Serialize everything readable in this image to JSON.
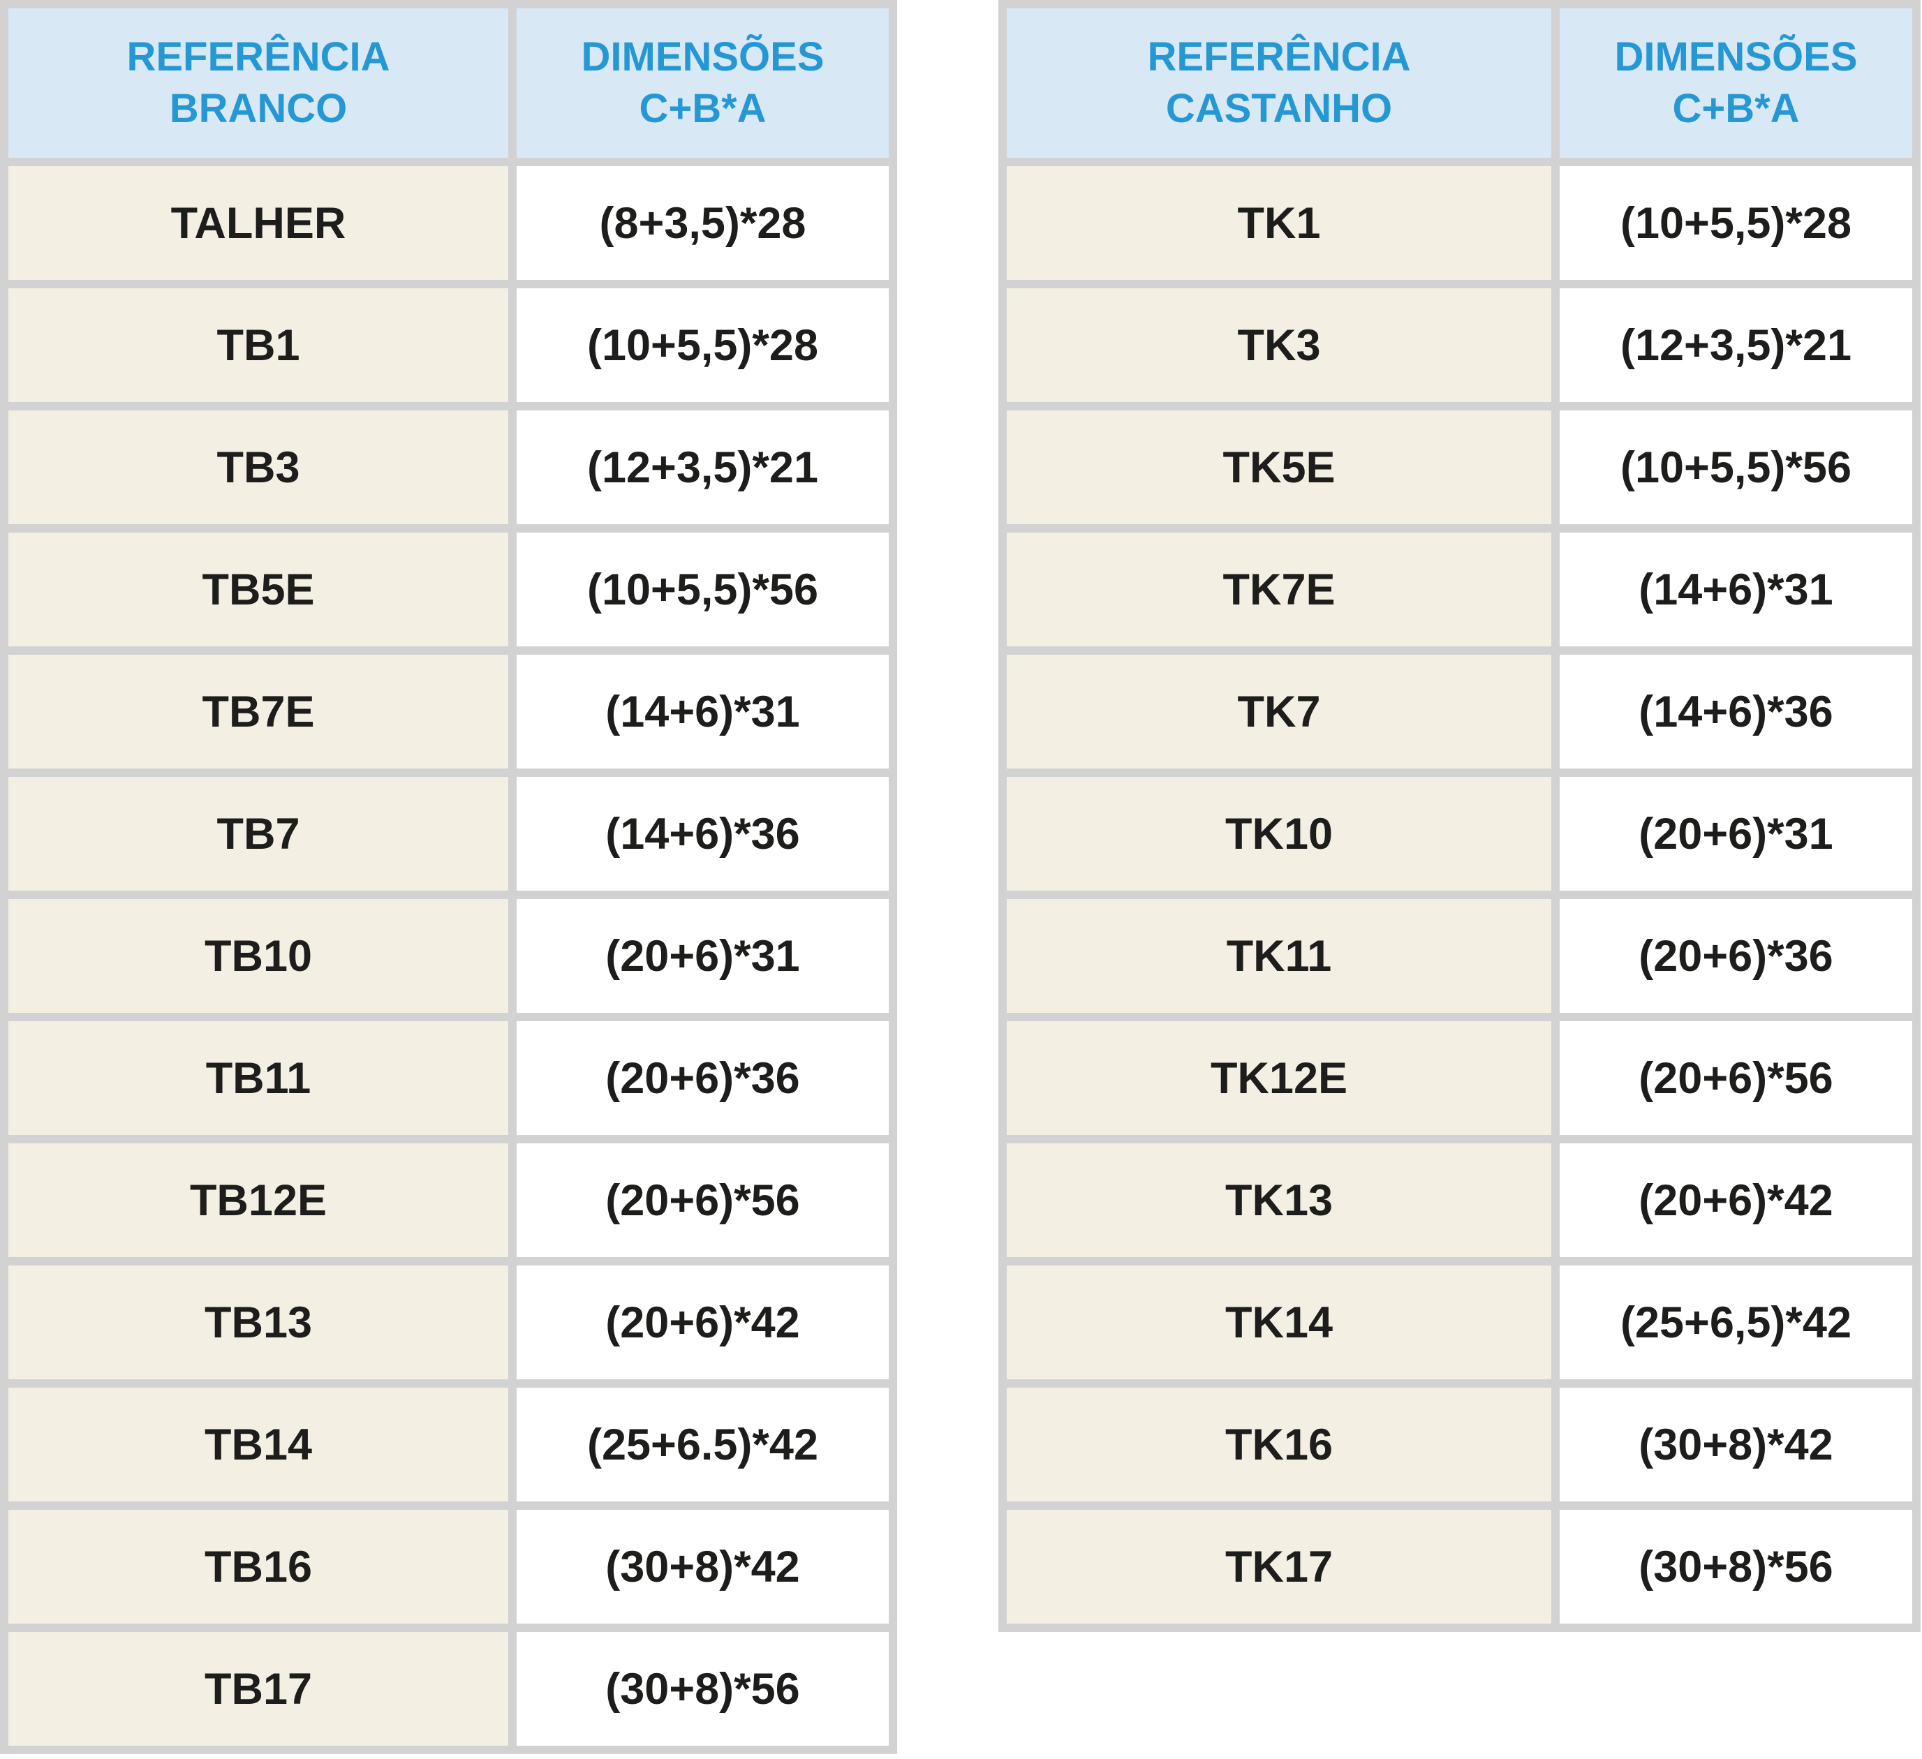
{
  "colors": {
    "table_border_gray": "#d2d2d2",
    "header_bg_blue": "#d8e9f5",
    "header_text_blue": "#2598d4",
    "row_ref_bg_cream": "#f3efe2",
    "row_dim_bg_white": "#ffffff",
    "row_text_black": "#1d1d1b"
  },
  "left_table": {
    "ref_header": "REFERÊNCIA BRANCO",
    "dim_header": "DIMENSÕES C+B*A",
    "rows": [
      {
        "ref": "TALHER",
        "dim": "(8+3,5)*28"
      },
      {
        "ref": "TB1",
        "dim": "(10+5,5)*28"
      },
      {
        "ref": "TB3",
        "dim": "(12+3,5)*21"
      },
      {
        "ref": "TB5E",
        "dim": "(10+5,5)*56"
      },
      {
        "ref": "TB7E",
        "dim": "(14+6)*31"
      },
      {
        "ref": "TB7",
        "dim": "(14+6)*36"
      },
      {
        "ref": "TB10",
        "dim": "(20+6)*31"
      },
      {
        "ref": "TB11",
        "dim": "(20+6)*36"
      },
      {
        "ref": "TB12E",
        "dim": "(20+6)*56"
      },
      {
        "ref": "TB13",
        "dim": "(20+6)*42"
      },
      {
        "ref": "TB14",
        "dim": "(25+6.5)*42"
      },
      {
        "ref": "TB16",
        "dim": "(30+8)*42"
      },
      {
        "ref": "TB17",
        "dim": "(30+8)*56"
      }
    ]
  },
  "right_table": {
    "ref_header": "REFERÊNCIA CASTANHO",
    "dim_header": "DIMENSÕES C+B*A",
    "rows": [
      {
        "ref": "TK1",
        "dim": "(10+5,5)*28"
      },
      {
        "ref": "TK3",
        "dim": "(12+3,5)*21"
      },
      {
        "ref": "TK5E",
        "dim": "(10+5,5)*56"
      },
      {
        "ref": "TK7E",
        "dim": "(14+6)*31"
      },
      {
        "ref": "TK7",
        "dim": "(14+6)*36"
      },
      {
        "ref": "TK10",
        "dim": "(20+6)*31"
      },
      {
        "ref": "TK11",
        "dim": "(20+6)*36"
      },
      {
        "ref": "TK12E",
        "dim": "(20+6)*56"
      },
      {
        "ref": "TK13",
        "dim": "(20+6)*42"
      },
      {
        "ref": "TK14",
        "dim": "(25+6,5)*42"
      },
      {
        "ref": "TK16",
        "dim": "(30+8)*42"
      },
      {
        "ref": "TK17",
        "dim": "(30+8)*56"
      }
    ]
  }
}
